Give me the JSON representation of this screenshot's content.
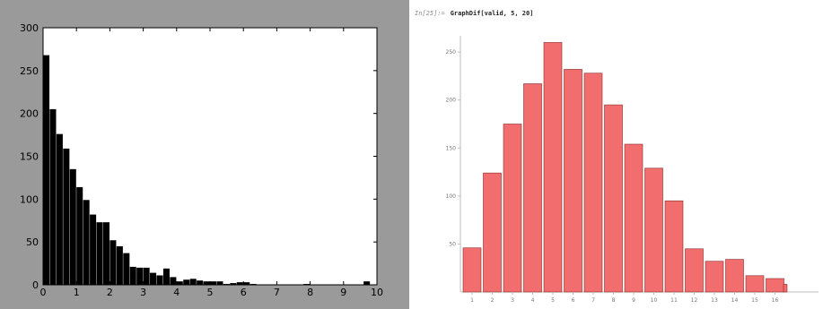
{
  "notebook": {
    "input_label": "In[25]:=",
    "command": "GraphDif[valid, 5, 20]"
  },
  "chart_data": [
    {
      "type": "bar",
      "name_hint": "left histogram",
      "xlim": [
        0,
        10
      ],
      "ylim": [
        0,
        300
      ],
      "xticks": [
        0,
        1,
        2,
        3,
        4,
        5,
        6,
        7,
        8,
        9,
        10
      ],
      "yticks": [
        0,
        50,
        100,
        150,
        200,
        250,
        300
      ],
      "bin_width": 0.2,
      "x": [
        0.1,
        0.3,
        0.5,
        0.7,
        0.9,
        1.1,
        1.3,
        1.5,
        1.7,
        1.9,
        2.1,
        2.3,
        2.5,
        2.7,
        2.9,
        3.1,
        3.3,
        3.5,
        3.7,
        3.9,
        4.1,
        4.3,
        4.5,
        4.7,
        4.9,
        5.1,
        5.3,
        5.5,
        5.7,
        5.9,
        6.1,
        6.3,
        6.5,
        6.7,
        6.9,
        7.1,
        7.3,
        7.5,
        7.7,
        7.9,
        8.1,
        8.3,
        8.5,
        8.7,
        8.9,
        9.1,
        9.3,
        9.5,
        9.7,
        9.9
      ],
      "values": [
        268,
        205,
        176,
        159,
        135,
        114,
        99,
        82,
        73,
        73,
        52,
        45,
        37,
        21,
        20,
        20,
        14,
        11,
        19,
        9,
        4,
        6,
        7,
        5,
        4,
        4,
        4,
        1,
        2,
        3,
        3,
        1,
        0,
        0,
        0,
        0,
        0,
        0,
        0,
        1,
        0,
        0,
        0,
        0,
        0,
        0,
        0,
        0,
        4,
        0
      ],
      "bar_color": "#000000",
      "background": "#ffffff",
      "grid": false
    },
    {
      "type": "bar",
      "name_hint": "right histogram",
      "categories": [
        "1",
        "2",
        "3",
        "4",
        "5",
        "6",
        "7",
        "8",
        "9",
        "10",
        "11",
        "12",
        "13",
        "14",
        "15",
        "16"
      ],
      "values": [
        46,
        124,
        175,
        217,
        260,
        232,
        228,
        195,
        154,
        129,
        95,
        45,
        32,
        34,
        17,
        14
      ],
      "trailing_stub": 8,
      "ylim": [
        0,
        280
      ],
      "yticks": [
        50,
        100,
        150,
        200,
        250
      ],
      "bar_color": "#f26d6d",
      "bar_edge": "#8a2a2a",
      "grid": false
    }
  ]
}
